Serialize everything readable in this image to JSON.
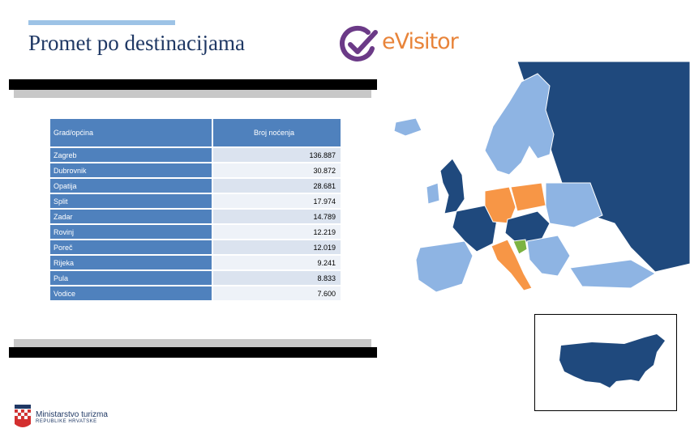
{
  "title": "Promet po destinacijama",
  "logo": {
    "text": "eVisitor",
    "icon": "check-circle-icon"
  },
  "table": {
    "header_city": "Grad/općina",
    "header_nights": "Broj noćenja",
    "rows": [
      {
        "city": "Zagreb",
        "nights": "136.887"
      },
      {
        "city": "Dubrovnik",
        "nights": "30.872"
      },
      {
        "city": "Opatija",
        "nights": "28.681"
      },
      {
        "city": "Split",
        "nights": "17.974"
      },
      {
        "city": "Zadar",
        "nights": "14.789"
      },
      {
        "city": "Rovinj",
        "nights": "12.219"
      },
      {
        "city": "Poreč",
        "nights": "12.019"
      },
      {
        "city": "Rijeka",
        "nights": "9.241"
      },
      {
        "city": "Pula",
        "nights": "8.833"
      },
      {
        "city": "Vodice",
        "nights": "7.600"
      }
    ]
  },
  "ministry": {
    "name": "Ministarstvo turizma",
    "sub": "REPUBLIKE HRVATSKE"
  },
  "colors": {
    "dark_blue": "#1f497d",
    "light_blue": "#8eb4e3",
    "orange": "#f79646",
    "green": "#7cb342",
    "header_blue": "#4f81bd"
  }
}
